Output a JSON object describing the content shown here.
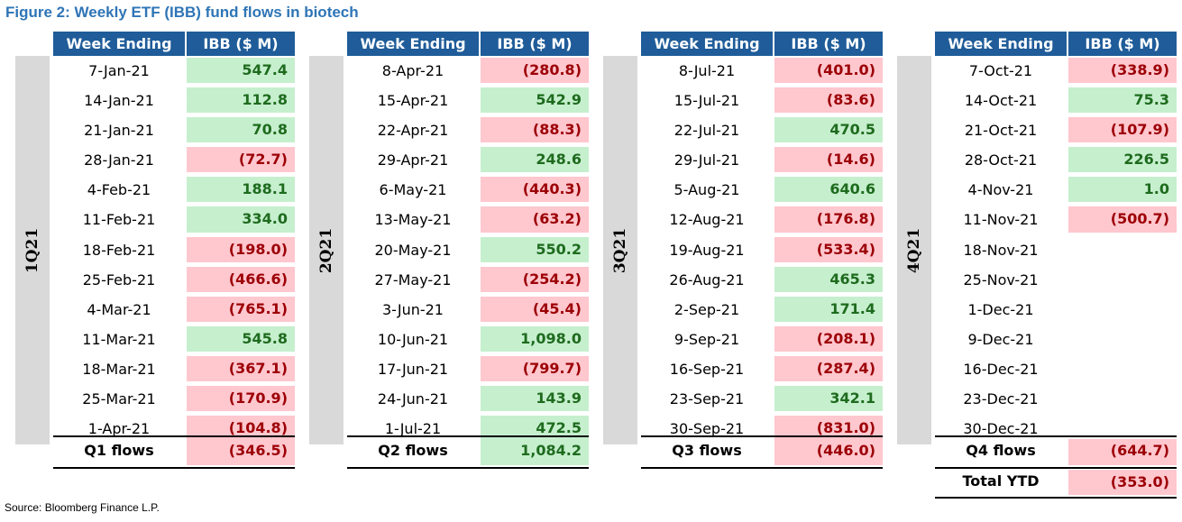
{
  "title": "Figure 2: Weekly ETF (IBB) fund flows in biotech",
  "source": "Source: Bloomberg Finance L.P.",
  "header": {
    "week": "Week Ending",
    "ibb": "IBB ($ M)"
  },
  "colors": {
    "header_bg": "#1f5c99",
    "positive_bg": "#c6efce",
    "positive_text": "#1e6b1e",
    "negative_bg": "#ffc7ce",
    "negative_text": "#9c0006",
    "title": "#2e75b6"
  },
  "quarters": [
    {
      "label": "1Q21",
      "rows": [
        {
          "week": "7-Jan-21",
          "value": "547.4",
          "sign": "pos"
        },
        {
          "week": "14-Jan-21",
          "value": "112.8",
          "sign": "pos"
        },
        {
          "week": "21-Jan-21",
          "value": "70.8",
          "sign": "pos"
        },
        {
          "week": "28-Jan-21",
          "value": "(72.7)",
          "sign": "neg"
        },
        {
          "week": "4-Feb-21",
          "value": "188.1",
          "sign": "pos"
        },
        {
          "week": "11-Feb-21",
          "value": "334.0",
          "sign": "pos"
        },
        {
          "week": "18-Feb-21",
          "value": "(198.0)",
          "sign": "neg"
        },
        {
          "week": "25-Feb-21",
          "value": "(466.6)",
          "sign": "neg"
        },
        {
          "week": "4-Mar-21",
          "value": "(765.1)",
          "sign": "neg"
        },
        {
          "week": "11-Mar-21",
          "value": "545.8",
          "sign": "pos"
        },
        {
          "week": "18-Mar-21",
          "value": "(367.1)",
          "sign": "neg"
        },
        {
          "week": "25-Mar-21",
          "value": "(170.9)",
          "sign": "neg"
        },
        {
          "week": "1-Apr-21",
          "value": "(104.8)",
          "sign": "neg"
        }
      ],
      "total": {
        "label": "Q1 flows",
        "value": "(346.5)",
        "sign": "neg"
      }
    },
    {
      "label": "2Q21",
      "rows": [
        {
          "week": "8-Apr-21",
          "value": "(280.8)",
          "sign": "neg"
        },
        {
          "week": "15-Apr-21",
          "value": "542.9",
          "sign": "pos"
        },
        {
          "week": "22-Apr-21",
          "value": "(88.3)",
          "sign": "neg"
        },
        {
          "week": "29-Apr-21",
          "value": "248.6",
          "sign": "pos"
        },
        {
          "week": "6-May-21",
          "value": "(440.3)",
          "sign": "neg"
        },
        {
          "week": "13-May-21",
          "value": "(63.2)",
          "sign": "neg"
        },
        {
          "week": "20-May-21",
          "value": "550.2",
          "sign": "pos"
        },
        {
          "week": "27-May-21",
          "value": "(254.2)",
          "sign": "neg"
        },
        {
          "week": "3-Jun-21",
          "value": "(45.4)",
          "sign": "neg"
        },
        {
          "week": "10-Jun-21",
          "value": "1,098.0",
          "sign": "pos"
        },
        {
          "week": "17-Jun-21",
          "value": "(799.7)",
          "sign": "neg"
        },
        {
          "week": "24-Jun-21",
          "value": "143.9",
          "sign": "pos"
        },
        {
          "week": "1-Jul-21",
          "value": "472.5",
          "sign": "pos"
        }
      ],
      "total": {
        "label": "Q2 flows",
        "value": "1,084.2",
        "sign": "pos"
      }
    },
    {
      "label": "3Q21",
      "rows": [
        {
          "week": "8-Jul-21",
          "value": "(401.0)",
          "sign": "neg"
        },
        {
          "week": "15-Jul-21",
          "value": "(83.6)",
          "sign": "neg"
        },
        {
          "week": "22-Jul-21",
          "value": "470.5",
          "sign": "pos"
        },
        {
          "week": "29-Jul-21",
          "value": "(14.6)",
          "sign": "neg"
        },
        {
          "week": "5-Aug-21",
          "value": "640.6",
          "sign": "pos"
        },
        {
          "week": "12-Aug-21",
          "value": "(176.8)",
          "sign": "neg"
        },
        {
          "week": "19-Aug-21",
          "value": "(533.4)",
          "sign": "neg"
        },
        {
          "week": "26-Aug-21",
          "value": "465.3",
          "sign": "pos"
        },
        {
          "week": "2-Sep-21",
          "value": "171.4",
          "sign": "pos"
        },
        {
          "week": "9-Sep-21",
          "value": "(208.1)",
          "sign": "neg"
        },
        {
          "week": "16-Sep-21",
          "value": "(287.4)",
          "sign": "neg"
        },
        {
          "week": "23-Sep-21",
          "value": "342.1",
          "sign": "pos"
        },
        {
          "week": "30-Sep-21",
          "value": "(831.0)",
          "sign": "neg"
        }
      ],
      "total": {
        "label": "Q3 flows",
        "value": "(446.0)",
        "sign": "neg"
      }
    },
    {
      "label": "4Q21",
      "rows": [
        {
          "week": "7-Oct-21",
          "value": "(338.9)",
          "sign": "neg"
        },
        {
          "week": "14-Oct-21",
          "value": "75.3",
          "sign": "pos"
        },
        {
          "week": "21-Oct-21",
          "value": "(107.9)",
          "sign": "neg"
        },
        {
          "week": "28-Oct-21",
          "value": "226.5",
          "sign": "pos"
        },
        {
          "week": "4-Nov-21",
          "value": "1.0",
          "sign": "pos"
        },
        {
          "week": "11-Nov-21",
          "value": "(500.7)",
          "sign": "neg"
        },
        {
          "week": "18-Nov-21",
          "value": "",
          "sign": "blank"
        },
        {
          "week": "25-Nov-21",
          "value": "",
          "sign": "blank"
        },
        {
          "week": "1-Dec-21",
          "value": "",
          "sign": "blank"
        },
        {
          "week": "9-Dec-21",
          "value": "",
          "sign": "blank"
        },
        {
          "week": "16-Dec-21",
          "value": "",
          "sign": "blank"
        },
        {
          "week": "23-Dec-21",
          "value": "",
          "sign": "blank"
        },
        {
          "week": "30-Dec-21",
          "value": "",
          "sign": "blank"
        }
      ],
      "total": {
        "label": "Q4 flows",
        "value": "(644.7)",
        "sign": "neg"
      }
    }
  ],
  "ytd": {
    "label": "Total YTD",
    "value": "(353.0)",
    "sign": "neg"
  }
}
